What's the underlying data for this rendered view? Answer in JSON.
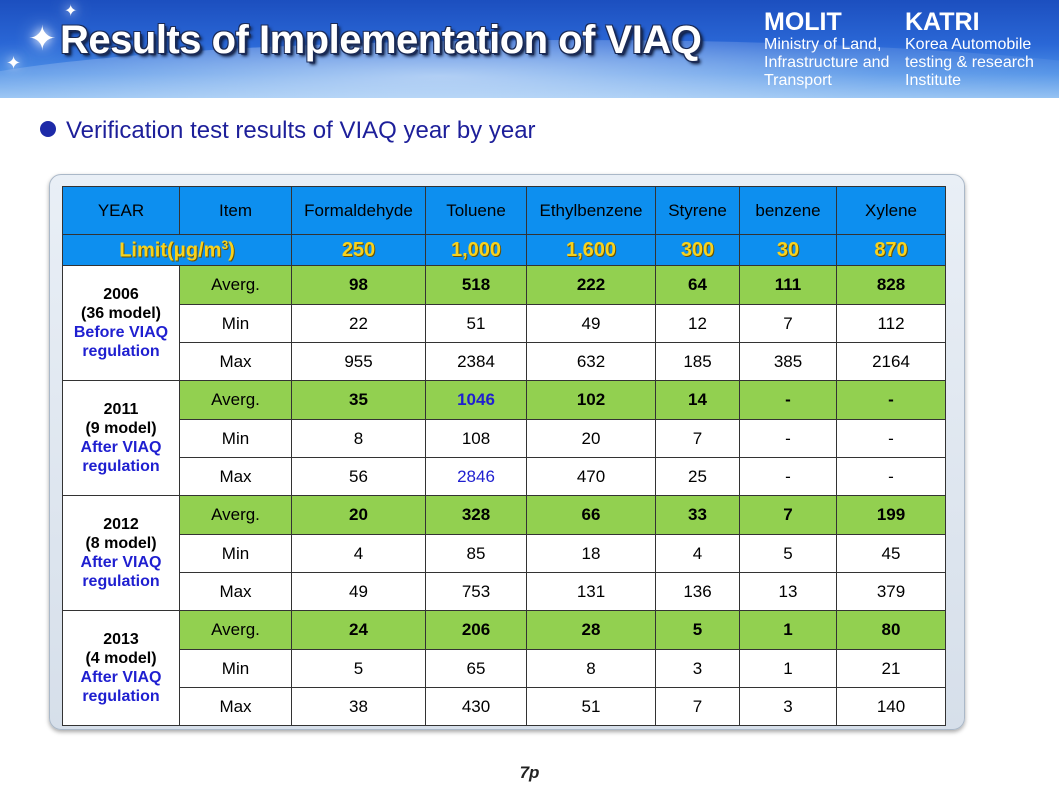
{
  "header": {
    "title": "Results of Implementation of VIAQ",
    "org_left": {
      "abbr": "MOLIT",
      "full": "Ministry of Land, Infrastructure and Transport"
    },
    "org_right": {
      "abbr": "KATRI",
      "full": "Korea Automobile testing & research Institute"
    }
  },
  "subtitle": "Verification test results of VIAQ year by year",
  "table": {
    "headers": [
      "YEAR",
      "Item",
      "Formaldehyde",
      "Toluene",
      "Ethylbenzene",
      "Styrene",
      "benzene",
      "Xylene"
    ],
    "limit_label": "Limit(μg/m",
    "limit_exp": "3",
    "limit_close": ")",
    "limits": [
      "250",
      "1,000",
      "1,600",
      "300",
      "30",
      "870"
    ],
    "groups": [
      {
        "year": "2006",
        "models": "(36 model)",
        "regulation": "Before VIAQ regulation",
        "rows": [
          {
            "item": "Averg.",
            "values": [
              "98",
              "518",
              "222",
              "64",
              "111",
              "828"
            ]
          },
          {
            "item": "Min",
            "values": [
              "22",
              "51",
              "49",
              "12",
              "7",
              "112"
            ]
          },
          {
            "item": "Max",
            "values": [
              "955",
              "2384",
              "632",
              "185",
              "385",
              "2164"
            ]
          }
        ]
      },
      {
        "year": "2011",
        "models": "(9 model)",
        "regulation": "After VIAQ regulation",
        "rows": [
          {
            "item": "Averg.",
            "values": [
              "35",
              "1046",
              "102",
              "14",
              "-",
              "-"
            ]
          },
          {
            "item": "Min",
            "values": [
              "8",
              "108",
              "20",
              "7",
              "-",
              "-"
            ]
          },
          {
            "item": "Max",
            "values": [
              "56",
              "2846",
              "470",
              "25",
              "-",
              "-"
            ]
          }
        ]
      },
      {
        "year": "2012",
        "models": "(8 model)",
        "regulation": "After VIAQ regulation",
        "rows": [
          {
            "item": "Averg.",
            "values": [
              "20",
              "328",
              "66",
              "33",
              "7",
              "199"
            ]
          },
          {
            "item": "Min",
            "values": [
              "4",
              "85",
              "18",
              "4",
              "5",
              "45"
            ]
          },
          {
            "item": "Max",
            "values": [
              "49",
              "753",
              "131",
              "136",
              "13",
              "379"
            ]
          }
        ]
      },
      {
        "year": "2013",
        "models": "(4 model)",
        "regulation": "After VIAQ regulation",
        "rows": [
          {
            "item": "Averg.",
            "values": [
              "24",
              "206",
              "28",
              "5",
              "1",
              "80"
            ]
          },
          {
            "item": "Min",
            "values": [
              "5",
              "65",
              "8",
              "3",
              "1",
              "21"
            ]
          },
          {
            "item": "Max",
            "values": [
              "38",
              "430",
              "51",
              "7",
              "3",
              "140"
            ]
          }
        ]
      }
    ]
  },
  "highlight_color": "#1f1fd0",
  "page_number": "7p"
}
